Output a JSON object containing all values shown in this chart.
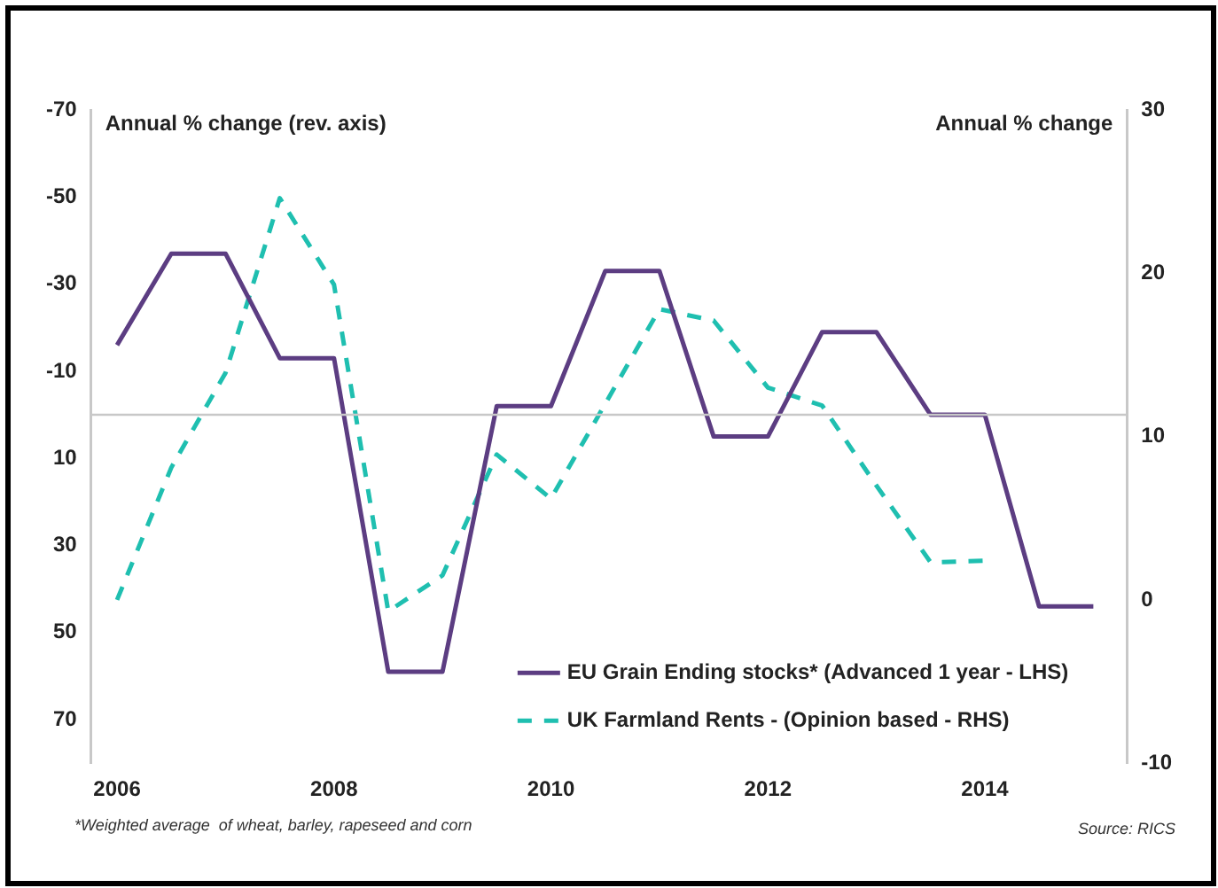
{
  "chart_data": {
    "type": "line",
    "ylabel": "Annual % change (rev. axis)",
    "y2label": "Annual % change",
    "x": [
      2006,
      2006.5,
      2007,
      2007.5,
      2008,
      2008.5,
      2009,
      2009.5,
      2010,
      2010.5,
      2011,
      2011.5,
      2012,
      2012.5,
      2013,
      2013.5,
      2014,
      2014.5,
      2015
    ],
    "series": [
      {
        "name": "EU Grain Ending stocks* (Advanced 1 year - LHS)",
        "color": "#5c3d82",
        "line_style": "solid",
        "values": [
          -16,
          -37,
          -37,
          -13,
          -13,
          59,
          59,
          -2,
          -2,
          -33,
          -33,
          5,
          5,
          -19,
          -19,
          0,
          0,
          44,
          44
        ]
      },
      {
        "name": "UK Farmland Rents - (Opinion based - RHS)",
        "color": "#1fbfb0",
        "line_style": "dashed",
        "axis": "y2",
        "values": [
          0,
          8.1,
          13.9,
          24.6,
          19.3,
          -0.7,
          1.5,
          8.9,
          6.2,
          12,
          17.8,
          17.1,
          13,
          11.9,
          7,
          2.3,
          2.4,
          null,
          null
        ]
      }
    ],
    "xlim": [
      2005.76,
      2015.31
    ],
    "xticks": [
      2006,
      2008,
      2010,
      2012,
      2014
    ],
    "ylim": [
      80,
      -70
    ],
    "yticks": [
      -70,
      -50,
      -30,
      -10,
      10,
      30,
      50,
      70
    ],
    "y2lim": [
      -10,
      30
    ],
    "y2ticks": [
      -10,
      0,
      10,
      20,
      30
    ],
    "ref_lines": [
      {
        "axis": "y",
        "value": 0,
        "color": "#c8c8c8"
      }
    ],
    "grid": false,
    "marker": "none",
    "legend": "bottom right",
    "annotations": [
      "*Weighted average  of wheat, barley, rapeseed and corn",
      "Source: RICS"
    ]
  }
}
